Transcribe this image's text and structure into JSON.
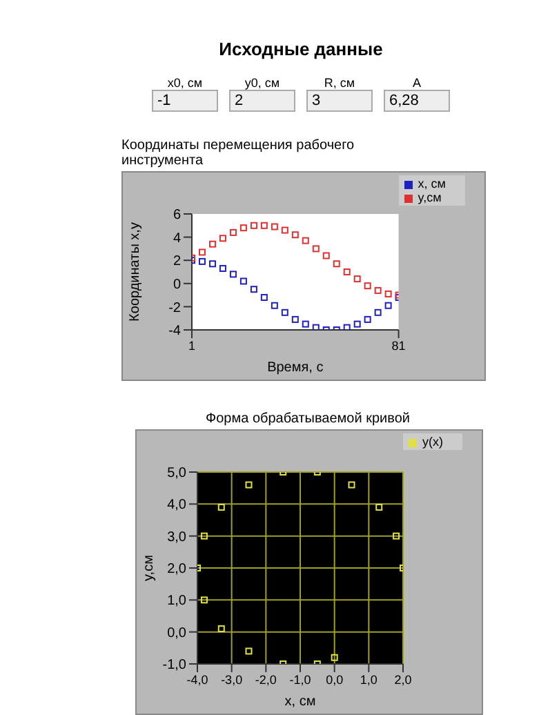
{
  "chart_data": [
    {
      "type": "other",
      "title": "Исходные данные",
      "annotations": [
        "x0, см",
        "-1",
        "y0, см",
        "2",
        "R, см",
        "3",
        "A",
        "6,28"
      ]
    },
    {
      "type": "scatter",
      "title": "Координаты перемещения рабочего инструмента",
      "xlabel": "Время, с",
      "ylabel": "Координаты x,y",
      "x": [
        1,
        5,
        9,
        13,
        17,
        21,
        25,
        29,
        33,
        37,
        41,
        45,
        49,
        53,
        57,
        61,
        65,
        69,
        73,
        77,
        81
      ],
      "xlim": [
        1,
        81
      ],
      "xticks": [
        1,
        81
      ],
      "ylim": [
        -4,
        6
      ],
      "yticks": [
        -4,
        -2,
        0,
        2,
        4,
        6
      ],
      "marker": "square",
      "grid": false,
      "legend": "top right",
      "series": [
        {
          "name": "x, см",
          "color": "#2020c0",
          "values": [
            2.0,
            1.9,
            1.7,
            1.3,
            0.8,
            0.2,
            -0.5,
            -1.2,
            -1.9,
            -2.5,
            -3.1,
            -3.5,
            -3.8,
            -4.0,
            -4.0,
            -3.8,
            -3.5,
            -3.1,
            -2.5,
            -1.9,
            -1.2
          ]
        },
        {
          "name": "y,см",
          "color": "#e03030",
          "values": [
            2.2,
            2.7,
            3.4,
            3.9,
            4.4,
            4.8,
            5.0,
            5.0,
            4.9,
            4.6,
            4.2,
            3.7,
            3.0,
            2.4,
            1.7,
            1.0,
            0.4,
            -0.2,
            -0.6,
            -0.9,
            -1.0
          ]
        }
      ]
    },
    {
      "type": "scatter",
      "title": "Форма обрабатываемой кривой",
      "xlabel": "x, см",
      "ylabel": "y,см",
      "xlim": [
        -4,
        2
      ],
      "xticks": [
        {
          "value": -4,
          "label": "-4,0"
        },
        {
          "value": -3,
          "label": "-3,0"
        },
        {
          "value": -2,
          "label": "-2,0"
        },
        {
          "value": -1,
          "label": "-1,0"
        },
        {
          "value": 0,
          "label": "0,0"
        },
        {
          "value": 1,
          "label": "1,0"
        },
        {
          "value": 2,
          "label": "2,0"
        }
      ],
      "ylim": [
        -1,
        5
      ],
      "yticks": [
        {
          "value": -1,
          "label": "-1,0"
        },
        {
          "value": 0,
          "label": "0,0"
        },
        {
          "value": 1,
          "label": "1,0"
        },
        {
          "value": 2,
          "label": "2,0"
        },
        {
          "value": 3,
          "label": "3,0"
        },
        {
          "value": 4,
          "label": "4,0"
        },
        {
          "value": 5,
          "label": "5,0"
        }
      ],
      "marker": "square",
      "grid": true,
      "legend": "top right",
      "series": [
        {
          "name": "y(x)",
          "color": "#e0e040",
          "x": [
            2.0,
            1.8,
            1.3,
            0.5,
            -0.5,
            -1.5,
            -2.5,
            -3.3,
            -3.8,
            -4.0,
            -3.8,
            -3.3,
            -2.5,
            -1.5,
            -0.5,
            0.0
          ],
          "values": [
            2.0,
            3.0,
            3.9,
            4.6,
            5.0,
            5.0,
            4.6,
            3.9,
            3.0,
            2.0,
            1.0,
            0.1,
            -0.6,
            -1.0,
            -1.0,
            -0.8
          ]
        }
      ]
    }
  ]
}
